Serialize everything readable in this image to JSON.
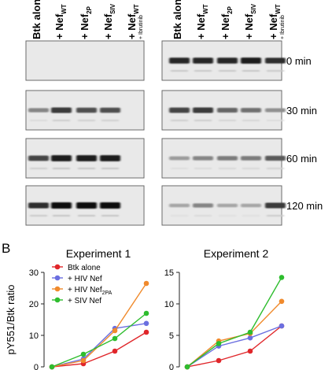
{
  "figure": {
    "panel_b_letter": "B",
    "lane_labels": [
      {
        "prefix": "Btk alone",
        "sub": "",
        "suffix": ""
      },
      {
        "prefix": "+ Nef",
        "sub": "WT",
        "suffix": ""
      },
      {
        "prefix": "+ Nef",
        "sub": "2P",
        "suffix": ""
      },
      {
        "prefix": "+ Nef",
        "sub": "SIV",
        "suffix": ""
      },
      {
        "prefix": "+ Nef",
        "sub": "WT",
        "suffix": "+ Ibrutinib"
      }
    ],
    "time_labels": [
      "0 min",
      "30 min",
      "60 min",
      "120 min"
    ],
    "blots": {
      "left": [
        [
          0,
          0,
          0,
          0,
          0
        ],
        [
          0.45,
          0.8,
          0.7,
          0.7,
          0
        ],
        [
          0.75,
          0.95,
          0.95,
          0.95,
          0
        ],
        [
          0.85,
          1.0,
          1.0,
          1.0,
          0
        ]
      ],
      "right": [
        [
          0.9,
          0.9,
          0.9,
          0.95,
          0.85
        ],
        [
          0.75,
          0.8,
          0.6,
          0.55,
          0.4
        ],
        [
          0.35,
          0.45,
          0.5,
          0.5,
          0.65
        ],
        [
          0.3,
          0.45,
          0.3,
          0.3,
          0.8
        ]
      ]
    }
  },
  "chart_data": [
    {
      "type": "line",
      "title": "Experiment 1",
      "ylabel": "pY551/Btk ratio",
      "ylim": [
        0,
        30
      ],
      "yticks": [
        "0",
        "10",
        "20",
        "30"
      ],
      "x": [
        0,
        1,
        2,
        3
      ],
      "legend": [
        {
          "prefix": "Btk alone",
          "sub": ""
        },
        {
          "prefix": "+ HIV Nef",
          "sub": ""
        },
        {
          "prefix": "+ HIV Nef",
          "sub": "2PA"
        },
        {
          "prefix": "+ SIV Nef",
          "sub": ""
        }
      ],
      "series": [
        {
          "name": "Btk alone",
          "color": "#e0262a",
          "values": [
            0,
            1,
            5,
            11
          ]
        },
        {
          "name": "+ HIV Nef",
          "color": "#6b6fe0",
          "values": [
            0,
            2.5,
            12.2,
            13.8
          ]
        },
        {
          "name": "+ HIV Nef2PA",
          "color": "#f08a2c",
          "values": [
            0,
            2,
            11.5,
            26.5
          ]
        },
        {
          "name": "+ SIV Nef",
          "color": "#2ebd2e",
          "values": [
            0,
            4,
            9,
            17
          ]
        }
      ]
    },
    {
      "type": "line",
      "title": "Experiment 2",
      "ylim": [
        0,
        15
      ],
      "yticks": [
        "0",
        "5",
        "10",
        "15"
      ],
      "x": [
        0,
        1,
        2,
        3
      ],
      "series": [
        {
          "name": "Btk alone",
          "color": "#e0262a",
          "values": [
            0,
            1,
            2.5,
            6.5
          ]
        },
        {
          "name": "+ HIV Nef",
          "color": "#6b6fe0",
          "values": [
            0,
            3.3,
            4.6,
            6.5
          ]
        },
        {
          "name": "+ HIV Nef2PA",
          "color": "#f08a2c",
          "values": [
            0,
            4.1,
            5.3,
            10.4
          ]
        },
        {
          "name": "+ SIV Nef",
          "color": "#2ebd2e",
          "values": [
            0,
            3.7,
            5.5,
            14.2
          ]
        }
      ]
    }
  ]
}
